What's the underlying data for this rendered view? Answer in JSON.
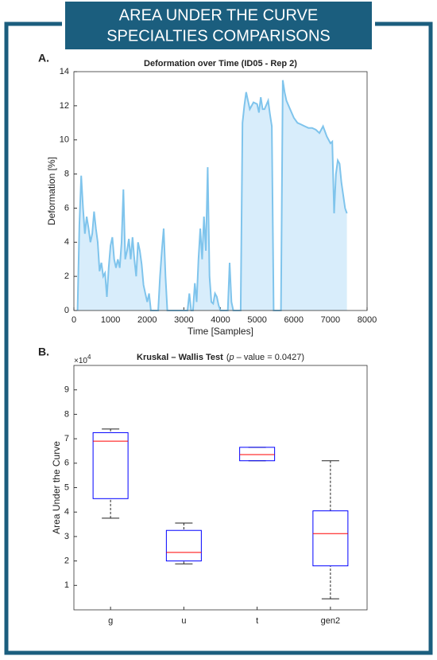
{
  "header": {
    "title_lines": [
      "AREA UNDER THE CURVE",
      "SPECIALTIES COMPARISONS"
    ]
  },
  "chart_data": [
    {
      "type": "area",
      "panel": "A.",
      "title": "Deformation over Time (ID05 - Rep 2)",
      "x_label": "Time [Samples]",
      "y_label": "Deformation [%]",
      "color": "#7fc4ec",
      "fill": "#d8edfb",
      "x": [
        100,
        150,
        200,
        250,
        300,
        350,
        400,
        450,
        500,
        550,
        600,
        650,
        700,
        750,
        800,
        850,
        900,
        950,
        1000,
        1050,
        1100,
        1150,
        1200,
        1250,
        1300,
        1350,
        1400,
        1450,
        1500,
        1550,
        1600,
        1650,
        1700,
        1750,
        1800,
        1850,
        1900,
        1950,
        2000,
        2050,
        2100,
        2300,
        2350,
        2400,
        2450,
        2500,
        2550,
        3100,
        3150,
        3200,
        3250,
        3300,
        3350,
        3400,
        3450,
        3500,
        3550,
        3600,
        3650,
        3700,
        3750,
        3800,
        3850,
        3900,
        3950,
        4000,
        4200,
        4250,
        4300,
        4350,
        4550,
        4600,
        4650,
        4700,
        4750,
        4800,
        4900,
        5000,
        5050,
        5100,
        5150,
        5200,
        5300,
        5350,
        5400,
        5450,
        5650,
        5700,
        5750,
        5800,
        5900,
        6000,
        6100,
        6200,
        6300,
        6400,
        6500,
        6600,
        6700,
        6800,
        6900,
        7000,
        7050,
        7100,
        7150,
        7200,
        7250,
        7300,
        7400,
        7450
      ],
      "values": [
        0,
        5,
        7.9,
        6,
        4.5,
        5.5,
        4.8,
        4,
        4.5,
        5.8,
        4.8,
        4,
        2.3,
        2.8,
        2,
        2.2,
        0.8,
        2.5,
        3.8,
        4.3,
        3,
        2.5,
        3,
        2.5,
        4,
        7.1,
        3,
        3.5,
        4.2,
        3,
        4.3,
        3,
        2,
        4,
        3.5,
        2.7,
        1.5,
        1,
        0.5,
        1,
        0,
        0,
        2,
        3.5,
        4.8,
        2,
        0,
        0,
        1,
        0,
        0,
        1.6,
        0.5,
        3,
        4.8,
        3,
        5.5,
        3.5,
        8.4,
        2,
        0.5,
        0.4,
        1,
        0.8,
        0.3,
        0,
        0,
        2.8,
        0.5,
        0,
        0,
        11,
        12,
        12.8,
        12.3,
        11.8,
        12.2,
        12.1,
        11.6,
        12.5,
        11.8,
        11.8,
        12.3,
        11.5,
        10.8,
        0,
        0,
        13.5,
        12.8,
        12.3,
        11.8,
        11.3,
        11,
        10.9,
        10.8,
        10.7,
        10.7,
        10.6,
        10.4,
        10.8,
        10.2,
        9.8,
        9.9,
        5.7,
        8,
        8.8,
        8.6,
        7.5,
        6,
        5.7
      ],
      "xlim": [
        0,
        8000
      ],
      "xticks": [
        0,
        1000,
        2000,
        3000,
        4000,
        5000,
        6000,
        7000,
        8000
      ],
      "ylim": [
        0,
        14
      ],
      "yticks": [
        0,
        2,
        4,
        6,
        8,
        10,
        12,
        14
      ]
    },
    {
      "type": "box",
      "panel": "B.",
      "title_parts": [
        "Kruskal – Wallis Test",
        "(",
        "p",
        " – value = 0.0427)"
      ],
      "y_label": "Area Under the Curve",
      "multiplier": [
        "×10",
        "4"
      ],
      "categories": [
        "g",
        "u",
        "t",
        "gen2"
      ],
      "boxes": [
        {
          "min": 3.75,
          "q1": 4.55,
          "median": 6.9,
          "q3": 7.25,
          "max": 7.4
        },
        {
          "min": 1.88,
          "q1": 2.0,
          "median": 2.35,
          "q3": 3.25,
          "max": 3.55
        },
        {
          "min": 6.1,
          "q1": 6.1,
          "median": 6.35,
          "q3": 6.65,
          "max": 6.65
        },
        {
          "min": 0.45,
          "q1": 1.8,
          "median": 3.12,
          "q3": 4.05,
          "max": 6.1
        }
      ],
      "box_color": "#0000ff",
      "median_color": "#ff0000",
      "ylim": [
        0,
        10
      ],
      "yticks": [
        1,
        2,
        3,
        4,
        5,
        6,
        7,
        8,
        9
      ]
    }
  ]
}
